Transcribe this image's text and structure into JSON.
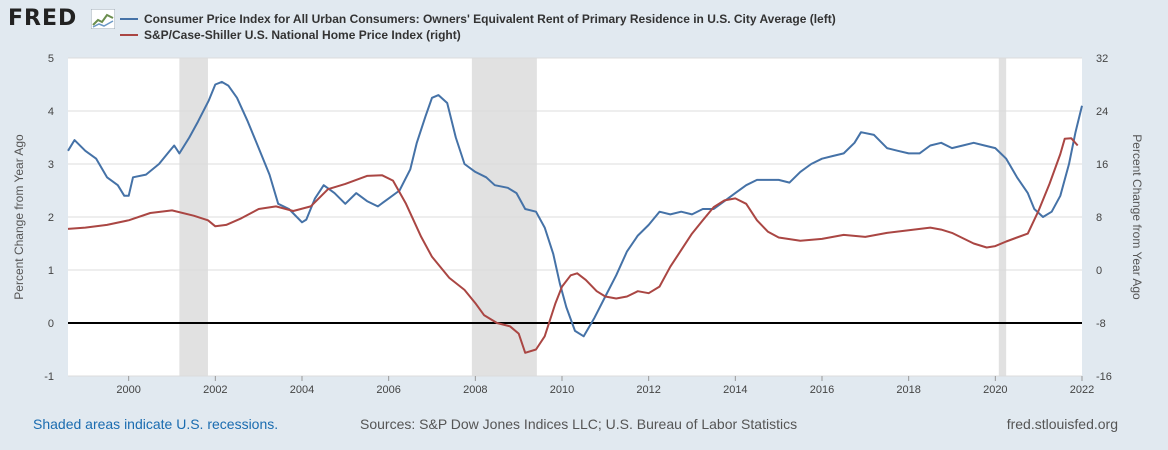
{
  "header": {
    "logo_text": "FRED",
    "logo_icon": "chart-line-icon"
  },
  "footer": {
    "recession_note": "Shaded areas indicate U.S. recessions.",
    "sources": "Sources: S&P Dow Jones Indices LLC; U.S. Bureau of Labor Statistics",
    "site": "fred.stlouisfed.org"
  },
  "colors": {
    "background": "#e1e9f0",
    "plot_bg": "#ffffff",
    "series_left": "#4572a7",
    "series_right": "#aa4643",
    "recession": "#e1e1e1",
    "grid": "#dcdcdc",
    "zero_line": "#000000"
  },
  "chart_data": {
    "type": "line",
    "title": "",
    "xlabel": "",
    "ylabel_left": "Percent Change from Year Ago",
    "ylabel_right": "Percent Change from Year Ago",
    "xlim": [
      1998.6,
      2022.0
    ],
    "ylim_left": [
      -1,
      5
    ],
    "ylim_right": [
      -16,
      32
    ],
    "x_ticks": [
      2000,
      2002,
      2004,
      2006,
      2008,
      2010,
      2012,
      2014,
      2016,
      2018,
      2020,
      2022
    ],
    "y_ticks_left": [
      -1,
      0,
      1,
      2,
      3,
      4,
      5
    ],
    "y_ticks_right": [
      -16,
      -8,
      0,
      8,
      16,
      24,
      32
    ],
    "grid": "horizontal",
    "legend_position": "top",
    "zero_line": 0,
    "recessions": [
      [
        2001.17,
        2001.83
      ],
      [
        2007.92,
        2009.42
      ],
      [
        2020.08,
        2020.25
      ]
    ],
    "series": [
      {
        "name": "Consumer Price Index for All Urban Consumers: Owners' Equivalent Rent of Primary Residence in U.S. City Average (left)",
        "axis": "left",
        "color": "#4572a7",
        "points": [
          [
            1998.6,
            3.25
          ],
          [
            1998.75,
            3.45
          ],
          [
            1999.0,
            3.25
          ],
          [
            1999.25,
            3.1
          ],
          [
            1999.5,
            2.75
          ],
          [
            1999.75,
            2.6
          ],
          [
            1999.9,
            2.4
          ],
          [
            2000.0,
            2.4
          ],
          [
            2000.1,
            2.75
          ],
          [
            2000.4,
            2.8
          ],
          [
            2000.7,
            3.0
          ],
          [
            2000.95,
            3.25
          ],
          [
            2001.05,
            3.35
          ],
          [
            2001.17,
            3.2
          ],
          [
            2001.4,
            3.5
          ],
          [
            2001.6,
            3.8
          ],
          [
            2001.85,
            4.2
          ],
          [
            2002.0,
            4.5
          ],
          [
            2002.15,
            4.55
          ],
          [
            2002.3,
            4.48
          ],
          [
            2002.5,
            4.25
          ],
          [
            2002.75,
            3.8
          ],
          [
            2003.0,
            3.3
          ],
          [
            2003.25,
            2.8
          ],
          [
            2003.45,
            2.25
          ],
          [
            2003.7,
            2.15
          ],
          [
            2004.0,
            1.9
          ],
          [
            2004.1,
            1.95
          ],
          [
            2004.3,
            2.35
          ],
          [
            2004.5,
            2.6
          ],
          [
            2004.75,
            2.45
          ],
          [
            2005.0,
            2.25
          ],
          [
            2005.25,
            2.45
          ],
          [
            2005.5,
            2.3
          ],
          [
            2005.75,
            2.2
          ],
          [
            2006.0,
            2.35
          ],
          [
            2006.25,
            2.5
          ],
          [
            2006.5,
            2.9
          ],
          [
            2006.65,
            3.4
          ],
          [
            2006.85,
            3.9
          ],
          [
            2007.0,
            4.25
          ],
          [
            2007.15,
            4.3
          ],
          [
            2007.35,
            4.15
          ],
          [
            2007.55,
            3.5
          ],
          [
            2007.75,
            3.0
          ],
          [
            2008.0,
            2.85
          ],
          [
            2008.25,
            2.75
          ],
          [
            2008.45,
            2.6
          ],
          [
            2008.75,
            2.55
          ],
          [
            2008.95,
            2.45
          ],
          [
            2009.15,
            2.15
          ],
          [
            2009.4,
            2.1
          ],
          [
            2009.6,
            1.8
          ],
          [
            2009.8,
            1.3
          ],
          [
            2009.95,
            0.75
          ],
          [
            2010.1,
            0.3
          ],
          [
            2010.3,
            -0.15
          ],
          [
            2010.5,
            -0.25
          ],
          [
            2010.75,
            0.1
          ],
          [
            2011.0,
            0.5
          ],
          [
            2011.25,
            0.9
          ],
          [
            2011.5,
            1.35
          ],
          [
            2011.75,
            1.65
          ],
          [
            2012.0,
            1.85
          ],
          [
            2012.25,
            2.1
          ],
          [
            2012.5,
            2.05
          ],
          [
            2012.75,
            2.1
          ],
          [
            2013.0,
            2.05
          ],
          [
            2013.25,
            2.15
          ],
          [
            2013.5,
            2.15
          ],
          [
            2013.75,
            2.3
          ],
          [
            2014.0,
            2.45
          ],
          [
            2014.25,
            2.6
          ],
          [
            2014.5,
            2.7
          ],
          [
            2014.75,
            2.7
          ],
          [
            2015.0,
            2.7
          ],
          [
            2015.25,
            2.65
          ],
          [
            2015.5,
            2.85
          ],
          [
            2015.75,
            3.0
          ],
          [
            2016.0,
            3.1
          ],
          [
            2016.25,
            3.15
          ],
          [
            2016.5,
            3.2
          ],
          [
            2016.75,
            3.4
          ],
          [
            2016.9,
            3.6
          ],
          [
            2017.2,
            3.55
          ],
          [
            2017.5,
            3.3
          ],
          [
            2017.75,
            3.25
          ],
          [
            2018.0,
            3.2
          ],
          [
            2018.25,
            3.2
          ],
          [
            2018.5,
            3.35
          ],
          [
            2018.75,
            3.4
          ],
          [
            2019.0,
            3.3
          ],
          [
            2019.25,
            3.35
          ],
          [
            2019.5,
            3.4
          ],
          [
            2019.75,
            3.35
          ],
          [
            2020.0,
            3.3
          ],
          [
            2020.25,
            3.1
          ],
          [
            2020.5,
            2.75
          ],
          [
            2020.75,
            2.45
          ],
          [
            2020.9,
            2.15
          ],
          [
            2021.1,
            2.0
          ],
          [
            2021.3,
            2.1
          ],
          [
            2021.5,
            2.4
          ],
          [
            2021.7,
            3.0
          ],
          [
            2021.85,
            3.6
          ],
          [
            2022.0,
            4.1
          ]
        ]
      },
      {
        "name": "S&P/Case-Shiller U.S. National Home Price Index (right)",
        "axis": "right",
        "color": "#aa4643",
        "points": [
          [
            1998.6,
            6.2
          ],
          [
            1999.0,
            6.4
          ],
          [
            1999.5,
            6.8
          ],
          [
            2000.0,
            7.5
          ],
          [
            2000.5,
            8.6
          ],
          [
            2001.0,
            9.0
          ],
          [
            2001.5,
            8.2
          ],
          [
            2001.83,
            7.5
          ],
          [
            2002.0,
            6.6
          ],
          [
            2002.25,
            6.8
          ],
          [
            2002.6,
            7.8
          ],
          [
            2003.0,
            9.2
          ],
          [
            2003.4,
            9.6
          ],
          [
            2003.8,
            8.9
          ],
          [
            2004.2,
            9.6
          ],
          [
            2004.6,
            12.2
          ],
          [
            2005.0,
            13.0
          ],
          [
            2005.5,
            14.2
          ],
          [
            2005.85,
            14.3
          ],
          [
            2006.1,
            13.5
          ],
          [
            2006.4,
            10.0
          ],
          [
            2006.75,
            5.0
          ],
          [
            2007.0,
            2.0
          ],
          [
            2007.4,
            -1.2
          ],
          [
            2007.75,
            -3.0
          ],
          [
            2008.0,
            -5.0
          ],
          [
            2008.2,
            -6.8
          ],
          [
            2008.5,
            -8.0
          ],
          [
            2008.8,
            -8.5
          ],
          [
            2009.0,
            -9.6
          ],
          [
            2009.15,
            -12.5
          ],
          [
            2009.4,
            -12.0
          ],
          [
            2009.6,
            -10.0
          ],
          [
            2009.85,
            -5.0
          ],
          [
            2010.0,
            -2.5
          ],
          [
            2010.2,
            -0.8
          ],
          [
            2010.35,
            -0.5
          ],
          [
            2010.55,
            -1.5
          ],
          [
            2010.8,
            -3.2
          ],
          [
            2011.0,
            -4.0
          ],
          [
            2011.25,
            -4.3
          ],
          [
            2011.5,
            -4.0
          ],
          [
            2011.75,
            -3.2
          ],
          [
            2012.0,
            -3.5
          ],
          [
            2012.25,
            -2.5
          ],
          [
            2012.5,
            0.5
          ],
          [
            2012.75,
            3.0
          ],
          [
            2013.0,
            5.5
          ],
          [
            2013.25,
            7.5
          ],
          [
            2013.5,
            9.5
          ],
          [
            2013.75,
            10.5
          ],
          [
            2014.0,
            10.8
          ],
          [
            2014.25,
            10.0
          ],
          [
            2014.5,
            7.5
          ],
          [
            2014.75,
            5.8
          ],
          [
            2015.0,
            4.9
          ],
          [
            2015.5,
            4.4
          ],
          [
            2016.0,
            4.7
          ],
          [
            2016.5,
            5.3
          ],
          [
            2017.0,
            5.0
          ],
          [
            2017.5,
            5.6
          ],
          [
            2018.0,
            6.0
          ],
          [
            2018.5,
            6.4
          ],
          [
            2018.75,
            6.1
          ],
          [
            2019.0,
            5.6
          ],
          [
            2019.5,
            4.0
          ],
          [
            2019.8,
            3.4
          ],
          [
            2020.0,
            3.6
          ],
          [
            2020.25,
            4.3
          ],
          [
            2020.5,
            4.9
          ],
          [
            2020.75,
            5.5
          ],
          [
            2021.0,
            9.0
          ],
          [
            2021.25,
            13.0
          ],
          [
            2021.5,
            17.5
          ],
          [
            2021.6,
            19.8
          ],
          [
            2021.75,
            19.9
          ],
          [
            2021.9,
            18.8
          ]
        ]
      }
    ]
  }
}
